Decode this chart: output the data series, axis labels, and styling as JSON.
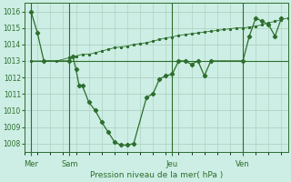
{
  "bg_color": "#cceee4",
  "grid_color": "#aaccbb",
  "line_color": "#2d6e2d",
  "title": "Pression niveau de la mer( hPa )",
  "ylim": [
    1007.5,
    1016.5
  ],
  "yticks": [
    1008,
    1009,
    1010,
    1011,
    1012,
    1013,
    1014,
    1015,
    1016
  ],
  "day_labels": [
    "Mer",
    "Sam",
    "Jeu",
    "Ven"
  ],
  "day_positions": [
    2,
    14,
    46,
    68
  ],
  "vline_positions": [
    2,
    14,
    46,
    68
  ],
  "xlim": [
    0,
    82
  ],
  "line1_x": [
    2,
    4,
    6,
    14,
    15,
    16,
    17,
    18,
    20,
    22,
    24,
    26,
    28,
    30,
    32,
    34,
    38,
    40,
    42,
    44,
    46,
    48,
    50,
    52,
    54,
    56,
    58,
    68,
    70,
    72,
    74,
    76,
    78,
    80
  ],
  "line1_y": [
    1016.0,
    1014.7,
    1013.0,
    1013.0,
    1013.3,
    1012.5,
    1011.5,
    1011.5,
    1010.5,
    1010.0,
    1009.3,
    1008.7,
    1008.1,
    1007.9,
    1007.9,
    1008.0,
    1010.8,
    1011.0,
    1011.9,
    1012.1,
    1012.2,
    1013.0,
    1013.0,
    1012.8,
    1013.0,
    1012.1,
    1013.0,
    1013.0,
    1014.5,
    1015.6,
    1015.4,
    1015.2,
    1014.5,
    1015.6
  ],
  "line2_x": [
    2,
    82
  ],
  "line2_y": [
    1013.0,
    1013.0
  ],
  "line3_x": [
    2,
    6,
    10,
    14,
    16,
    18,
    20,
    22,
    24,
    26,
    28,
    30,
    32,
    34,
    36,
    38,
    40,
    42,
    44,
    46,
    48,
    50,
    52,
    54,
    56,
    58,
    60,
    62,
    64,
    66,
    68,
    70,
    72,
    74,
    76,
    78,
    80,
    82
  ],
  "line3_y": [
    1013.0,
    1013.0,
    1013.0,
    1013.2,
    1013.3,
    1013.4,
    1013.4,
    1013.5,
    1013.6,
    1013.7,
    1013.8,
    1013.85,
    1013.9,
    1014.0,
    1014.05,
    1014.1,
    1014.2,
    1014.3,
    1014.4,
    1014.45,
    1014.55,
    1014.6,
    1014.65,
    1014.7,
    1014.75,
    1014.8,
    1014.85,
    1014.9,
    1014.95,
    1015.0,
    1015.0,
    1015.05,
    1015.1,
    1015.2,
    1015.3,
    1015.4,
    1015.5,
    1015.6
  ]
}
